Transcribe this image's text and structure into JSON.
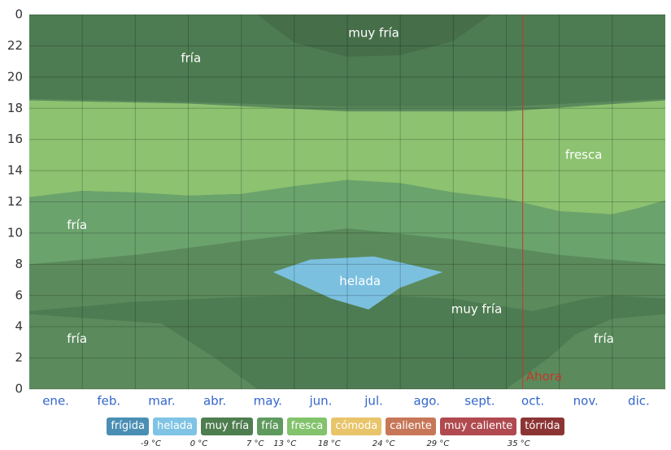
{
  "chart_data": {
    "type": "area",
    "xlim": [
      0,
      12
    ],
    "ylim": [
      0,
      24
    ],
    "yticks": [
      0,
      2,
      4,
      6,
      8,
      10,
      12,
      14,
      16,
      18,
      20,
      22,
      {
        "value": 24,
        "label": "0"
      }
    ],
    "categories": [
      "ene.",
      "feb.",
      "mar.",
      "abr.",
      "may.",
      "jun.",
      "jul.",
      "ago.",
      "sept.",
      "oct.",
      "nov.",
      "dic."
    ],
    "grid": true,
    "regions": [
      {
        "color": "#5b8b5d",
        "x": [
          0,
          12,
          12,
          0
        ],
        "y": [
          0,
          0,
          24,
          24
        ]
      },
      {
        "color": "#4e7c52",
        "x": [
          0,
          3,
          6,
          9,
          12,
          12,
          0
        ],
        "y": [
          18.6,
          18.4,
          18.1,
          18.1,
          18.6,
          24,
          24
        ]
      },
      {
        "color": "#456e49",
        "x": [
          4.3,
          5,
          6,
          7,
          8,
          8.7
        ],
        "y": [
          24,
          22.2,
          21.3,
          21.4,
          22.3,
          24
        ]
      },
      {
        "color": "#8cc270",
        "x": [
          0,
          3,
          6,
          9,
          12,
          12,
          11.5,
          11,
          10,
          9,
          8,
          7,
          6,
          5,
          4,
          3,
          2,
          1,
          0
        ],
        "y": [
          18.5,
          18.3,
          17.8,
          17.8,
          18.5,
          12.1,
          11.6,
          11.2,
          11.4,
          12.2,
          12.6,
          13.2,
          13.4,
          13,
          12.5,
          12.4,
          12.6,
          12.7,
          12.3
        ]
      },
      {
        "color": "#6ba36d",
        "x": [
          0,
          1,
          2,
          3,
          4,
          5,
          6,
          7,
          8,
          9,
          10,
          11,
          11.5,
          12,
          12,
          10,
          8,
          6,
          4,
          2,
          0
        ],
        "y": [
          12.3,
          12.7,
          12.6,
          12.4,
          12.5,
          13,
          13.4,
          13.2,
          12.6,
          12.2,
          11.4,
          11.2,
          11.6,
          12.1,
          8,
          8.6,
          9.6,
          10.3,
          9.5,
          8.6,
          8
        ]
      },
      {
        "color": "#4e7c52",
        "x": [
          0,
          1,
          2,
          4,
          6,
          8,
          9.5,
          10.5,
          11,
          12,
          12,
          11,
          10.3,
          9.8,
          9,
          7,
          5,
          4.3,
          3.5,
          2.5,
          0
        ],
        "y": [
          5,
          5.3,
          5.6,
          5.9,
          6.1,
          5.8,
          5,
          5.8,
          6,
          5.8,
          4.8,
          4.5,
          3.5,
          2,
          0,
          0,
          0,
          0,
          2,
          4.2,
          4.8
        ]
      },
      {
        "color": "#7cc0e0",
        "x": [
          4.6,
          5.3,
          6.5,
          7.8,
          7,
          6.4,
          5.7
        ],
        "y": [
          7.5,
          8.3,
          8.5,
          7.5,
          6.5,
          5.1,
          5.8
        ]
      }
    ],
    "annotations": [
      {
        "text": "muy fría",
        "x": 6.5,
        "y": 22.8
      },
      {
        "text": "fría",
        "x": 3.05,
        "y": 21.2
      },
      {
        "text": "fresca",
        "x": 10.46,
        "y": 15
      },
      {
        "text": "fría",
        "x": 0.9,
        "y": 10.5
      },
      {
        "text": "helada",
        "x": 6.24,
        "y": 6.9
      },
      {
        "text": "muy fría",
        "x": 8.44,
        "y": 5.1
      },
      {
        "text": "fría",
        "x": 0.9,
        "y": 3.2
      },
      {
        "text": "fría",
        "x": 10.84,
        "y": 3.2
      }
    ],
    "marker": {
      "text": "Ahora",
      "x": 9.31,
      "color": "#c0392b"
    },
    "legend": [
      {
        "name": "frígida",
        "color": "#4a8fb3"
      },
      {
        "name": "helada",
        "color": "#7fc4e4"
      },
      {
        "name": "muy fría",
        "color": "#4e7d4f"
      },
      {
        "name": "fría",
        "color": "#5e9a5d"
      },
      {
        "name": "fresca",
        "color": "#82c36c"
      },
      {
        "name": "cómoda",
        "color": "#e8c46a"
      },
      {
        "name": "caliente",
        "color": "#c77758"
      },
      {
        "name": "muy caliente",
        "color": "#b04a4f"
      },
      {
        "name": "tórrida",
        "color": "#8c3434"
      }
    ],
    "thresholds": [
      {
        "value": -9,
        "label": "-9 °C"
      },
      {
        "value": 0,
        "label": "0 °C"
      },
      {
        "value": 7,
        "label": "7 °C"
      },
      {
        "value": 13,
        "label": "13 °C"
      },
      {
        "value": 18,
        "label": "18 °C"
      },
      {
        "value": 24,
        "label": "24 °C"
      },
      {
        "value": 29,
        "label": "29 °C"
      },
      {
        "value": 35,
        "label": "35 °C"
      }
    ]
  }
}
